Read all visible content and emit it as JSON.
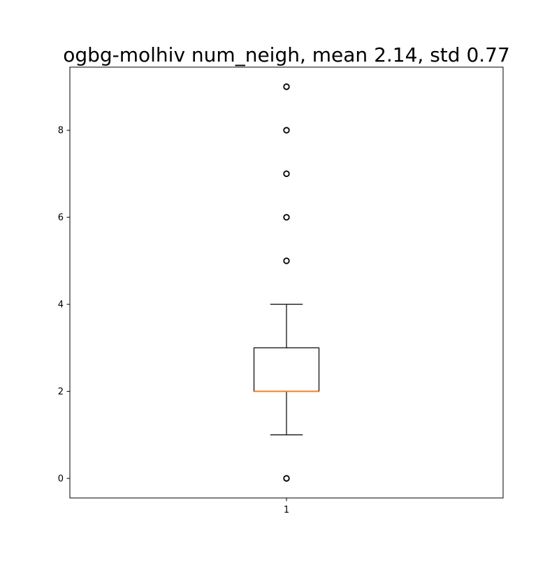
{
  "chart_data": {
    "type": "boxplot",
    "title": "ogbg-molhiv num_neigh, mean 2.14, std 0.77",
    "xlabel": "",
    "ylabel": "",
    "categories": [
      "1"
    ],
    "y_ticks": [
      0,
      2,
      4,
      6,
      8
    ],
    "ylim": [
      -0.45,
      9.45
    ],
    "grid": false,
    "boxes": [
      {
        "category": "1",
        "whisker_low": 1,
        "q1": 2,
        "median": 2,
        "q3": 3,
        "whisker_high": 4,
        "outliers": [
          0,
          5,
          6,
          7,
          8,
          9
        ]
      }
    ],
    "colors": {
      "box": "#000000",
      "median": "#ff7f0e",
      "outlier": "#000000"
    }
  }
}
